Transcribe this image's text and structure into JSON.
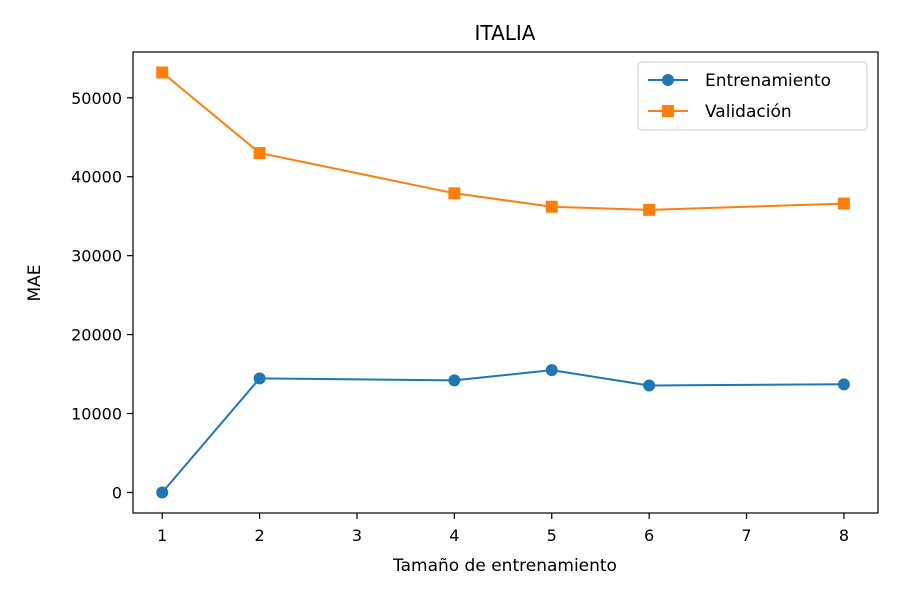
{
  "chart_data": {
    "type": "line",
    "title": "ITALIA",
    "xlabel": "Tamaño de entrenamiento",
    "ylabel": "MAE",
    "xlim": [
      0.7,
      8.35
    ],
    "ylim": [
      -2600,
      55800
    ],
    "xticks": [
      1,
      2,
      3,
      4,
      5,
      6,
      7,
      8
    ],
    "yticks": [
      0,
      10000,
      20000,
      30000,
      40000,
      50000
    ],
    "x": [
      1,
      2,
      4,
      5,
      6,
      8
    ],
    "series": [
      {
        "name": "Entrenamiento",
        "color": "#1f77b4",
        "marker": "circle",
        "values": [
          0,
          14450,
          14200,
          15500,
          13550,
          13700
        ]
      },
      {
        "name": "Validación",
        "color": "#ff7f0e",
        "marker": "square",
        "values": [
          53200,
          43000,
          37900,
          36200,
          35800,
          36600
        ]
      }
    ],
    "grid": false,
    "legend": "top-right"
  }
}
